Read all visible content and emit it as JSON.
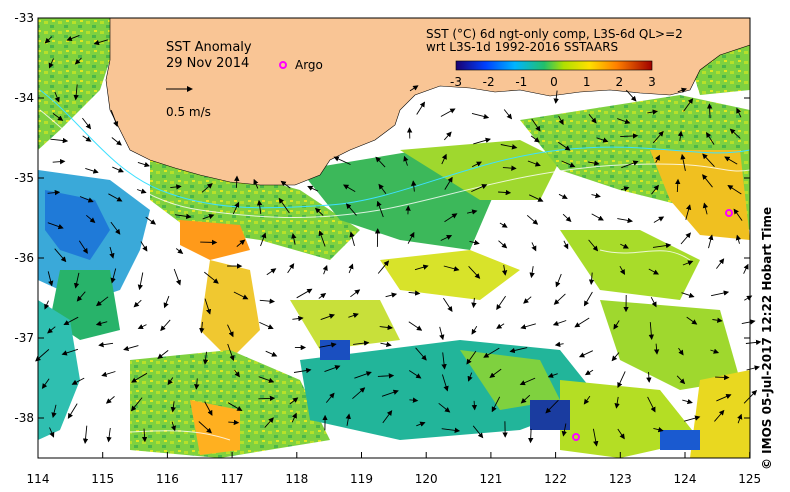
{
  "map": {
    "title": "SST Anomaly",
    "date": "29 Nov 2014",
    "argo_label": "Argo",
    "scale_label": "0.5 m/s",
    "legend_line1": "SST (°C) 6d ngt-only comp, L3S-6d QL>=2",
    "legend_line2": "wrt L3S-1d 1992-2016 SSTAARS",
    "colorbar_ticks": [
      "-3",
      "-2",
      "-1",
      "0",
      "1",
      "2",
      "3"
    ],
    "lat_ticks": [
      "-33",
      "-34",
      "-35",
      "-36",
      "-37",
      "-38"
    ],
    "lon_ticks": [
      "114",
      "115",
      "116",
      "117",
      "118",
      "119",
      "120",
      "121",
      "122",
      "123",
      "124",
      "125"
    ],
    "credit": "IMOS 05-Jul-2017 12:22 Hobart Time",
    "copyright": "©",
    "colors": {
      "land": "#f9c595",
      "argo": "#ff00ff",
      "warm": "#f5d800",
      "cool": "#2aa64a",
      "cold": "#1a6ed6",
      "hot": "#ff7a00"
    }
  }
}
